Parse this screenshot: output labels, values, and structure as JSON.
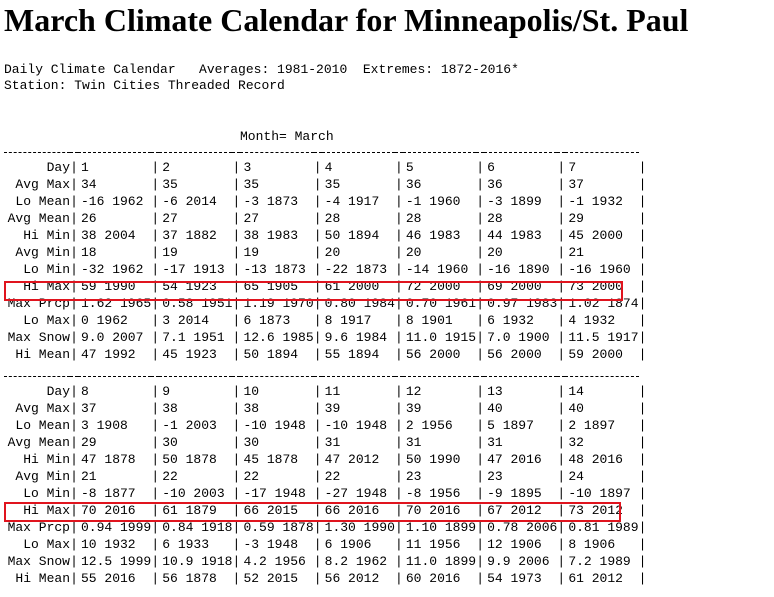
{
  "title": "March Climate Calendar for Minneapolis/St. Paul",
  "header_line1": "Daily Climate Calendar   Averages: 1981-2010  Extremes: 1872-2016*",
  "header_line2": "Station: Twin Cities Threaded Record",
  "month_line": "Month= March",
  "highlight_color": "#e0141e",
  "row_labels": [
    "Day",
    "Avg Max",
    "Lo Mean",
    "Avg Mean",
    "Hi Min",
    "Avg Min",
    "Lo Min",
    "Hi Max",
    "Max Prcp",
    "Lo Max",
    "Max Snow",
    "Hi Mean"
  ],
  "week1": {
    "days": [
      "1",
      "2",
      "3",
      "4",
      "5",
      "6",
      "7"
    ],
    "rows": [
      [
        "34",
        "35",
        "35",
        "35",
        "36",
        "36",
        "37"
      ],
      [
        "-16 1962",
        "-6 2014",
        "-3 1873",
        "-4 1917",
        "-1 1960",
        "-3 1899",
        "-1 1932"
      ],
      [
        "26",
        "27",
        "27",
        "28",
        "28",
        "28",
        "29"
      ],
      [
        "38 2004",
        "37 1882",
        "38 1983",
        "50 1894",
        "46 1983",
        "44 1983",
        "45 2000"
      ],
      [
        "18",
        "19",
        "19",
        "20",
        "20",
        "20",
        "21"
      ],
      [
        "-32 1962",
        "-17 1913",
        "-13 1873",
        "-22 1873",
        "-14 1960",
        "-16 1890",
        "-16 1960"
      ],
      [
        "59 1990",
        "54 1923",
        "65 1905",
        "61 2000",
        "72 2000",
        "69 2000",
        "73 2000"
      ],
      [
        "1.62 1965",
        "0.58 1951",
        "1.19 1970",
        "0.80 1984",
        "0.70 1961",
        "0.97 1983",
        "1.02 1874"
      ],
      [
        "0 1962",
        "3 2014",
        "6 1873",
        "8 1917",
        "8 1901",
        "6 1932",
        "4 1932"
      ],
      [
        "9.0 2007",
        "7.1 1951",
        "12.6 1985",
        "9.6 1984",
        "11.0 1915",
        "7.0 1900",
        "11.5 1917"
      ],
      [
        "47 1992",
        "45 1923",
        "50 1894",
        "55 1894",
        "56 2000",
        "56 2000",
        "59 2000"
      ]
    ]
  },
  "week2": {
    "days": [
      "8",
      "9",
      "10",
      "11",
      "12",
      "13",
      "14"
    ],
    "rows": [
      [
        "37",
        "38",
        "38",
        "39",
        "39",
        "40",
        "40"
      ],
      [
        "3 1908",
        "-1 2003",
        "-10 1948",
        "-10 1948",
        "2 1956",
        "5 1897",
        "2 1897"
      ],
      [
        "29",
        "30",
        "30",
        "31",
        "31",
        "31",
        "32"
      ],
      [
        "47 1878",
        "50 1878",
        "45 1878",
        "47 2012",
        "50 1990",
        "47 2016",
        "48 2016"
      ],
      [
        "21",
        "22",
        "22",
        "22",
        "23",
        "23",
        "24"
      ],
      [
        "-8 1877",
        "-10 2003",
        "-17 1948",
        "-27 1948",
        "-8 1956",
        "-9 1895",
        "-10 1897"
      ],
      [
        "70 2016",
        "61 1879",
        "66 2015",
        "66 2016",
        "70 2016",
        "67 2012",
        "73 2012"
      ],
      [
        "0.94 1999",
        "0.84 1918",
        "0.59 1878",
        "1.30 1990",
        "1.10 1899",
        "0.78 2006",
        "0.81 1989"
      ],
      [
        "10 1932",
        "6 1933",
        "-3 1948",
        "6 1906",
        "11 1956",
        "12 1906",
        "8 1906"
      ],
      [
        "12.5 1999",
        "10.9 1918",
        "4.2 1956",
        "8.2 1962",
        "11.0 1899",
        "9.9 2006",
        "7.2 1989"
      ],
      [
        "55 2016",
        "56 1878",
        "52 2015",
        "56 2012",
        "60 2016",
        "54 1973",
        "61 2012"
      ]
    ]
  }
}
